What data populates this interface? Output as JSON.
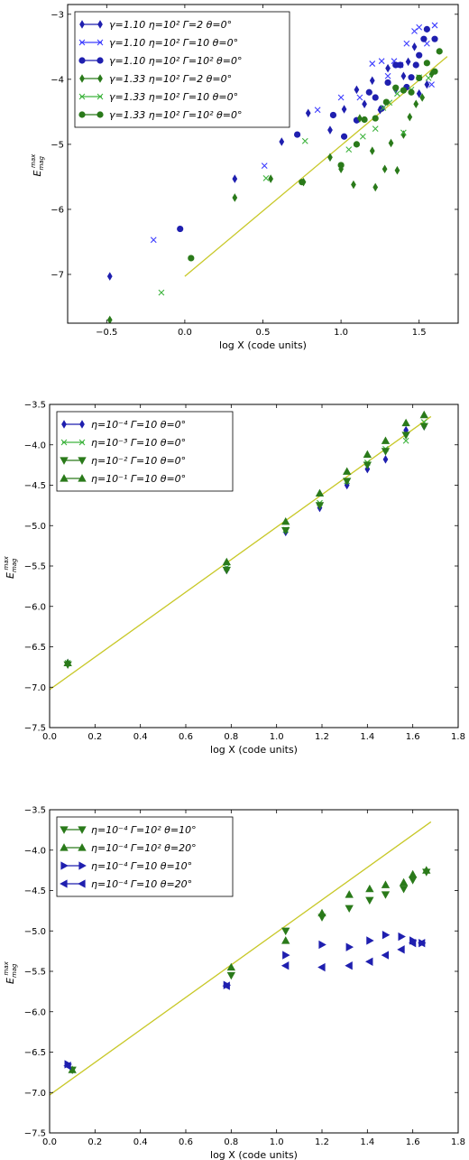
{
  "chart_data": [
    {
      "type": "scatter",
      "xlabel": "log X (code units)",
      "ylabel": "E_mag^max",
      "ylabel_main": "E",
      "ylabel_sub": "mag",
      "ylabel_sup": "max",
      "xlim": [
        -0.75,
        1.75
      ],
      "ylim": [
        -7.75,
        -2.85
      ],
      "xticks": [
        -0.5,
        0.0,
        0.5,
        1.0,
        1.5
      ],
      "xtick_labels": [
        "−0.5",
        "0.0",
        "0.5",
        "1.0",
        "1.5"
      ],
      "yticks": [
        -7,
        -6,
        -5,
        -4,
        -3
      ],
      "ytick_labels": [
        "−7",
        "−6",
        "−5",
        "−4",
        "−3"
      ],
      "legend_position": "top-left",
      "fit_line": {
        "x": [
          0.0,
          1.68
        ],
        "y": [
          -7.03,
          -3.65
        ]
      },
      "series": [
        {
          "name": "γ=1.10 η=10² Γ=2    θ=0°",
          "marker": "diamond",
          "color": "#1f1faf",
          "filled": true,
          "x": [
            -0.48,
            0.32,
            0.62,
            0.79,
            0.93,
            1.02,
            1.1,
            1.15,
            1.2,
            1.25,
            1.3,
            1.35,
            1.4,
            1.43,
            1.47,
            1.5,
            1.55
          ],
          "y": [
            -7.03,
            -5.53,
            -4.96,
            -4.52,
            -4.78,
            -4.46,
            -4.16,
            -4.38,
            -4.02,
            -4.47,
            -3.83,
            -4.16,
            -3.95,
            -3.73,
            -3.5,
            -4.22,
            -4.08
          ]
        },
        {
          "name": "γ=1.10 η=10² Γ=10   θ=0°",
          "marker": "x",
          "color": "#3d3dff",
          "filled": false,
          "x": [
            -0.2,
            0.51,
            0.85,
            1.0,
            1.12,
            1.2,
            1.26,
            1.3,
            1.34,
            1.38,
            1.42,
            1.47,
            1.5,
            1.55,
            1.58,
            1.6
          ],
          "y": [
            -6.47,
            -5.33,
            -4.47,
            -4.28,
            -4.28,
            -3.76,
            -3.72,
            -3.95,
            -3.72,
            -3.78,
            -3.45,
            -3.26,
            -3.2,
            -3.45,
            -4.08,
            -3.17
          ]
        },
        {
          "name": "γ=1.10 η=10² Γ=10²  θ=0°",
          "marker": "circle",
          "color": "#1f1faf",
          "filled": true,
          "x": [
            -0.03,
            0.72,
            0.95,
            1.02,
            1.1,
            1.18,
            1.22,
            1.26,
            1.3,
            1.35,
            1.38,
            1.42,
            1.45,
            1.48,
            1.5,
            1.53,
            1.55,
            1.6
          ],
          "y": [
            -6.3,
            -4.85,
            -4.55,
            -4.88,
            -4.63,
            -4.2,
            -4.28,
            -4.45,
            -4.05,
            -3.78,
            -3.78,
            -4.12,
            -3.97,
            -3.78,
            -3.63,
            -3.38,
            -3.23,
            -3.38
          ]
        },
        {
          "name": "γ=1.33 η=10² Γ=2    θ=0°",
          "marker": "diamond",
          "color": "#2a7a1a",
          "filled": true,
          "x": [
            -0.48,
            0.32,
            0.55,
            0.76,
            0.93,
            1.0,
            1.08,
            1.12,
            1.2,
            1.22,
            1.28,
            1.32,
            1.36,
            1.4,
            1.44,
            1.48,
            1.52,
            1.58
          ],
          "y": [
            -7.7,
            -5.82,
            -5.53,
            -5.58,
            -5.2,
            -5.38,
            -5.62,
            -4.6,
            -5.1,
            -5.66,
            -5.38,
            -4.98,
            -5.4,
            -4.85,
            -4.58,
            -4.38,
            -4.28,
            -3.92
          ]
        },
        {
          "name": "γ=1.33 η=10² Γ=10   θ=0°",
          "marker": "x",
          "color": "#3db33d",
          "filled": false,
          "x": [
            -0.15,
            0.52,
            0.77,
            1.05,
            1.14,
            1.22,
            1.27,
            1.31,
            1.36,
            1.4,
            1.45,
            1.5,
            1.56
          ],
          "y": [
            -7.28,
            -5.52,
            -4.95,
            -5.08,
            -4.88,
            -4.76,
            -4.44,
            -4.36,
            -4.22,
            -4.82,
            -4.16,
            -3.97,
            -3.98
          ]
        },
        {
          "name": "γ=1.33 η=10² Γ=10²  θ=0°",
          "marker": "circle",
          "color": "#2a7a1a",
          "filled": true,
          "x": [
            0.04,
            0.75,
            1.0,
            1.1,
            1.15,
            1.22,
            1.29,
            1.35,
            1.4,
            1.45,
            1.5,
            1.55,
            1.6,
            1.63
          ],
          "y": [
            -6.75,
            -5.58,
            -5.32,
            -5.0,
            -4.62,
            -4.6,
            -4.35,
            -4.13,
            -4.17,
            -4.2,
            -3.98,
            -3.75,
            -3.88,
            -3.57
          ]
        }
      ]
    },
    {
      "type": "scatter",
      "xlabel": "log X (code units)",
      "ylabel": "E_mag^max",
      "ylabel_main": "E",
      "ylabel_sub": "mag",
      "ylabel_sup": "max",
      "xlim": [
        0.0,
        1.8
      ],
      "ylim": [
        -7.5,
        -3.5
      ],
      "xticks": [
        0.0,
        0.2,
        0.4,
        0.6,
        0.8,
        1.0,
        1.2,
        1.4,
        1.6,
        1.8
      ],
      "xtick_labels": [
        "0.0",
        "0.2",
        "0.4",
        "0.6",
        "0.8",
        "1.0",
        "1.2",
        "1.4",
        "1.6",
        "1.8"
      ],
      "yticks": [
        -7.5,
        -7.0,
        -6.5,
        -6.0,
        -5.5,
        -5.0,
        -4.5,
        -4.0,
        -3.5
      ],
      "ytick_labels": [
        "−7.5",
        "−7.0",
        "−6.5",
        "−6.0",
        "−5.5",
        "−5.0",
        "−4.5",
        "−4.0",
        "−3.5"
      ],
      "legend_position": "top-left",
      "fit_line": {
        "x": [
          0.0,
          1.68
        ],
        "y": [
          -7.03,
          -3.65
        ]
      },
      "series": [
        {
          "name": "η=10⁻⁴ Γ=10  θ=0°",
          "marker": "diamond",
          "color": "#1f1faf",
          "filled": true,
          "x": [
            0.08,
            0.78,
            1.04,
            1.19,
            1.31,
            1.4,
            1.48,
            1.57,
            1.65
          ],
          "y": [
            -6.7,
            -5.55,
            -5.08,
            -4.78,
            -4.5,
            -4.3,
            -4.18,
            -3.82,
            -3.77
          ]
        },
        {
          "name": "η=10⁻³ Γ=10  θ=0°",
          "marker": "x",
          "color": "#3db33d",
          "filled": false,
          "x": [
            0.08,
            0.78,
            1.04,
            1.19,
            1.31,
            1.4,
            1.48,
            1.57,
            1.65
          ],
          "y": [
            -6.7,
            -5.52,
            -5.05,
            -4.72,
            -4.45,
            -4.22,
            -4.05,
            -3.95,
            -3.72
          ]
        },
        {
          "name": "η=10⁻² Γ=10  θ=0°",
          "marker": "triangle-down",
          "color": "#2a7a1a",
          "filled": true,
          "x": [
            0.08,
            0.78,
            1.04,
            1.19,
            1.31,
            1.4,
            1.48,
            1.57,
            1.65
          ],
          "y": [
            -6.72,
            -5.55,
            -5.06,
            -4.75,
            -4.45,
            -4.25,
            -4.08,
            -3.88,
            -3.77
          ]
        },
        {
          "name": "η=10⁻¹ Γ=10  θ=0°",
          "marker": "triangle-up",
          "color": "#2a7a1a",
          "filled": true,
          "x": [
            0.08,
            0.78,
            1.04,
            1.19,
            1.31,
            1.4,
            1.48,
            1.57,
            1.65
          ],
          "y": [
            -6.7,
            -5.45,
            -4.95,
            -4.6,
            -4.33,
            -4.12,
            -3.95,
            -3.73,
            -3.63
          ]
        }
      ]
    },
    {
      "type": "scatter",
      "xlabel": "log X (code units)",
      "ylabel": "E_mag^max",
      "ylabel_main": "E",
      "ylabel_sub": "mag",
      "ylabel_sup": "max",
      "xlim": [
        0.0,
        1.8
      ],
      "ylim": [
        -7.5,
        -3.5
      ],
      "xticks": [
        0.0,
        0.2,
        0.4,
        0.6,
        0.8,
        1.0,
        1.2,
        1.4,
        1.6,
        1.8
      ],
      "xtick_labels": [
        "0.0",
        "0.2",
        "0.4",
        "0.6",
        "0.8",
        "1.0",
        "1.2",
        "1.4",
        "1.6",
        "1.8"
      ],
      "yticks": [
        -7.5,
        -7.0,
        -6.5,
        -6.0,
        -5.5,
        -5.0,
        -4.5,
        -4.0,
        -3.5
      ],
      "ytick_labels": [
        "−7.5",
        "−7.0",
        "−6.5",
        "−6.0",
        "−5.5",
        "−5.0",
        "−4.5",
        "−4.0",
        "−3.5"
      ],
      "legend_position": "top-left",
      "fit_line": {
        "x": [
          0.0,
          1.68
        ],
        "y": [
          -7.03,
          -3.65
        ]
      },
      "series": [
        {
          "name": "η=10⁻⁴ Γ=10²  θ=10°",
          "marker": "triangle-down",
          "color": "#2a7a1a",
          "filled": true,
          "x": [
            0.1,
            0.8,
            1.04,
            1.2,
            1.32,
            1.41,
            1.48,
            1.56,
            1.6,
            1.66
          ],
          "y": [
            -6.72,
            -5.55,
            -5.0,
            -4.83,
            -4.72,
            -4.62,
            -4.55,
            -4.48,
            -4.37,
            -4.27
          ]
        },
        {
          "name": "η=10⁻⁴ Γ=10²  θ=20°",
          "marker": "triangle-up",
          "color": "#2a7a1a",
          "filled": true,
          "x": [
            0.1,
            0.8,
            1.04,
            1.2,
            1.32,
            1.41,
            1.48,
            1.56,
            1.6,
            1.66
          ],
          "y": [
            -6.72,
            -5.45,
            -5.12,
            -4.78,
            -4.55,
            -4.48,
            -4.43,
            -4.4,
            -4.3,
            -4.25
          ]
        },
        {
          "name": "η=10⁻⁴ Γ=10  θ=10°",
          "marker": "triangle-right",
          "color": "#1f1faf",
          "filled": true,
          "x": [
            0.08,
            0.78,
            1.04,
            1.2,
            1.32,
            1.41,
            1.48,
            1.55,
            1.6,
            1.64
          ],
          "y": [
            -6.65,
            -5.67,
            -5.3,
            -5.17,
            -5.2,
            -5.12,
            -5.05,
            -5.07,
            -5.12,
            -5.15
          ]
        },
        {
          "name": "η=10⁻⁴ Γ=10  θ=20°",
          "marker": "triangle-left",
          "color": "#1f1faf",
          "filled": true,
          "x": [
            0.08,
            0.78,
            1.04,
            1.2,
            1.32,
            1.41,
            1.48,
            1.55,
            1.6,
            1.64
          ],
          "y": [
            -6.67,
            -5.68,
            -5.43,
            -5.45,
            -5.43,
            -5.38,
            -5.3,
            -5.23,
            -5.15,
            -5.15
          ]
        }
      ]
    }
  ]
}
